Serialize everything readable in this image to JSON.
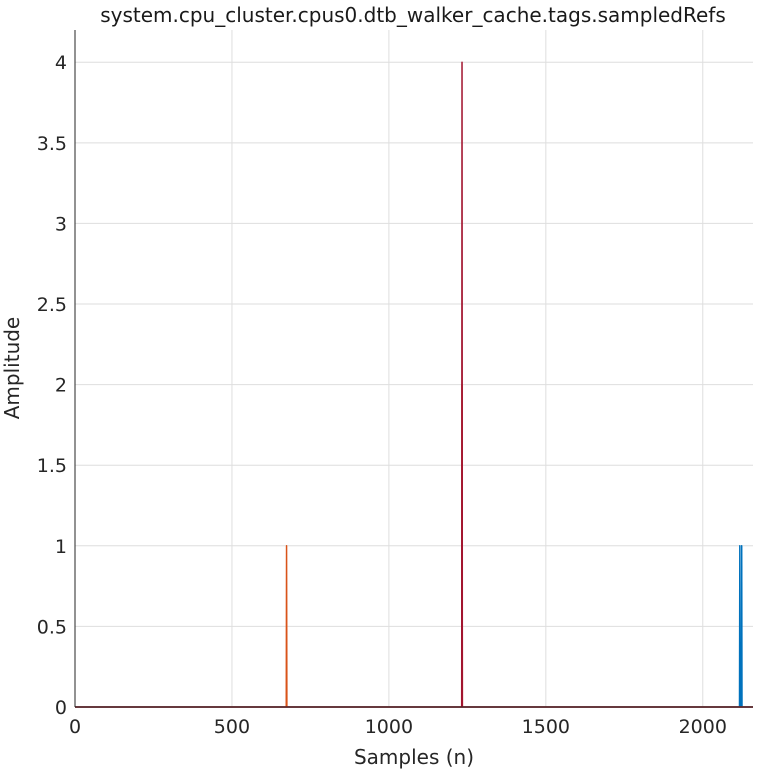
{
  "chart_data": {
    "type": "line",
    "title": "system.cpu_cluster.cpus0.dtb_walker_cache.tags.sampledRefs",
    "xlabel": "Samples (n)",
    "ylabel": "Amplitude",
    "xlim": [
      0,
      2160
    ],
    "ylim": [
      0,
      4.2
    ],
    "xticks": [
      0,
      500,
      1000,
      1500,
      2000
    ],
    "xtick_labels": [
      "0",
      "500",
      "1000",
      "1500",
      "2000"
    ],
    "yticks": [
      0,
      0.5,
      1,
      1.5,
      2,
      2.5,
      3,
      3.5,
      4
    ],
    "ytick_labels": [
      "0",
      "0.5",
      "1",
      "1.5",
      "2",
      "2.5",
      "3",
      "3.5",
      "4"
    ],
    "grid": true,
    "series": [
      {
        "color": "#0072BD",
        "x": [
          0,
          2117,
          2118,
          2119,
          2123,
          2124,
          2125,
          2160
        ],
        "y": [
          0,
          0,
          1,
          0,
          0,
          1,
          0,
          0
        ]
      },
      {
        "color": "#D95319",
        "x": [
          0,
          673,
          674,
          675,
          1232,
          1233,
          1234,
          2160
        ],
        "y": [
          0,
          0,
          1,
          0,
          0,
          2,
          0,
          0
        ]
      },
      {
        "color": "#A2142F",
        "x": [
          0,
          1232,
          1233,
          1234,
          2160
        ],
        "y": [
          0,
          0,
          4,
          0,
          0
        ]
      }
    ]
  }
}
